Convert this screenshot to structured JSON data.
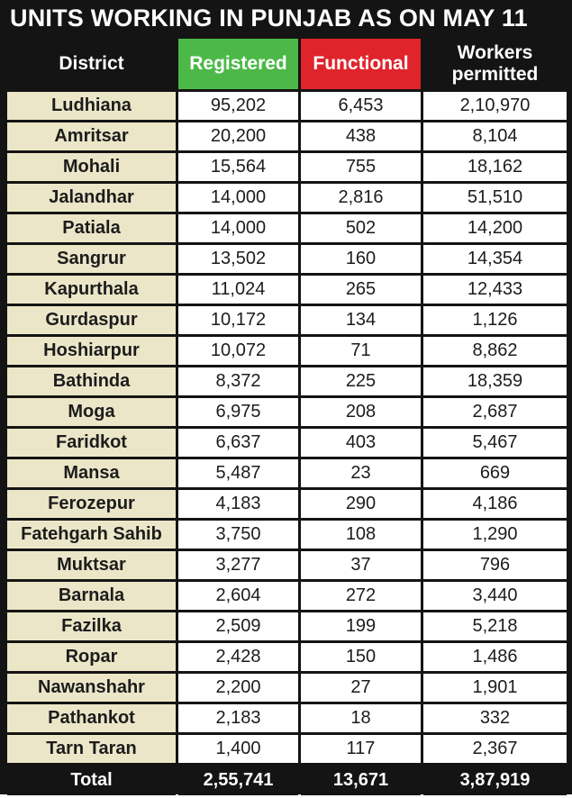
{
  "title": "UNITS WORKING IN PUNJAB AS ON MAY 11",
  "headers": {
    "district": "District",
    "registered": "Registered",
    "functional": "Functional",
    "workers_line1": "Workers",
    "workers_line2": "permitted"
  },
  "colors": {
    "registered_header": "#4cb848",
    "functional_header": "#e0242c",
    "district_cell": "#ece6c8",
    "background": "#141414"
  },
  "rows": [
    [
      "Ludhiana",
      "95,202",
      "6,453",
      "2,10,970"
    ],
    [
      "Amritsar",
      "20,200",
      "438",
      "8,104"
    ],
    [
      "Mohali",
      "15,564",
      "755",
      "18,162"
    ],
    [
      "Jalandhar",
      "14,000",
      "2,816",
      "51,510"
    ],
    [
      "Patiala",
      "14,000",
      "502",
      "14,200"
    ],
    [
      "Sangrur",
      "13,502",
      "160",
      "14,354"
    ],
    [
      "Kapurthala",
      "11,024",
      "265",
      "12,433"
    ],
    [
      "Gurdaspur",
      "10,172",
      "134",
      "1,126"
    ],
    [
      "Hoshiarpur",
      "10,072",
      "71",
      "8,862"
    ],
    [
      "Bathinda",
      "8,372",
      "225",
      "18,359"
    ],
    [
      "Moga",
      "6,975",
      "208",
      "2,687"
    ],
    [
      "Faridkot",
      "6,637",
      "403",
      "5,467"
    ],
    [
      "Mansa",
      "5,487",
      "23",
      "669"
    ],
    [
      "Ferozepur",
      "4,183",
      "290",
      "4,186"
    ],
    [
      "Fatehgarh Sahib",
      "3,750",
      "108",
      "1,290"
    ],
    [
      "Muktsar",
      "3,277",
      "37",
      "796"
    ],
    [
      "Barnala",
      "2,604",
      "272",
      "3,440"
    ],
    [
      "Fazilka",
      "2,509",
      "199",
      "5,218"
    ],
    [
      "Ropar",
      "2,428",
      "150",
      "1,486"
    ],
    [
      "Nawanshahr",
      "2,200",
      "27",
      "1,901"
    ],
    [
      "Pathankot",
      "2,183",
      "18",
      "332"
    ],
    [
      "Tarn Taran",
      "1,400",
      "117",
      "2,367"
    ]
  ],
  "total": {
    "label": "Total",
    "registered": "2,55,741",
    "functional": "13,671",
    "workers": "3,87,919"
  }
}
